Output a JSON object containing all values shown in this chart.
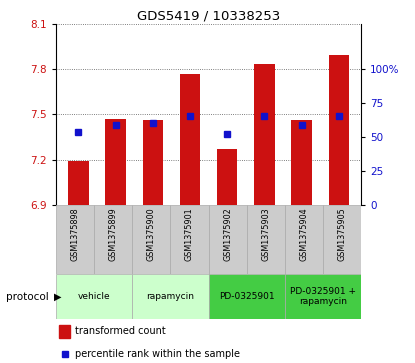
{
  "title": "GDS5419 / 10338253",
  "samples": [
    "GSM1375898",
    "GSM1375899",
    "GSM1375900",
    "GSM1375901",
    "GSM1375902",
    "GSM1375903",
    "GSM1375904",
    "GSM1375905"
  ],
  "bar_bottoms": [
    6.9,
    6.9,
    6.9,
    6.9,
    6.9,
    6.9,
    6.9,
    6.9
  ],
  "bar_tops": [
    7.19,
    7.47,
    7.46,
    7.77,
    7.27,
    7.83,
    7.46,
    7.89
  ],
  "percentile_values": [
    7.38,
    7.43,
    7.44,
    7.49,
    7.37,
    7.49,
    7.43,
    7.49
  ],
  "ylim_left": [
    6.9,
    8.1
  ],
  "yticks_left": [
    6.9,
    7.2,
    7.5,
    7.8,
    8.1
  ],
  "yticks_right": [
    0,
    25,
    50,
    75,
    100
  ],
  "ylim_right": [
    0,
    133.33
  ],
  "bar_color": "#cc1111",
  "dot_color": "#1111cc",
  "protocols": [
    {
      "label": "vehicle",
      "start": 0,
      "end": 1,
      "color": "#ccffcc"
    },
    {
      "label": "rapamycin",
      "start": 2,
      "end": 3,
      "color": "#ccffcc"
    },
    {
      "label": "PD-0325901",
      "start": 4,
      "end": 5,
      "color": "#44cc44"
    },
    {
      "label": "PD-0325901 +\nrapamycin",
      "start": 6,
      "end": 7,
      "color": "#44cc44"
    }
  ],
  "legend_bar_label": "transformed count",
  "legend_dot_label": "percentile rank within the sample",
  "background_color": "#ffffff",
  "grid_color": "#555555",
  "sample_box_color": "#cccccc"
}
